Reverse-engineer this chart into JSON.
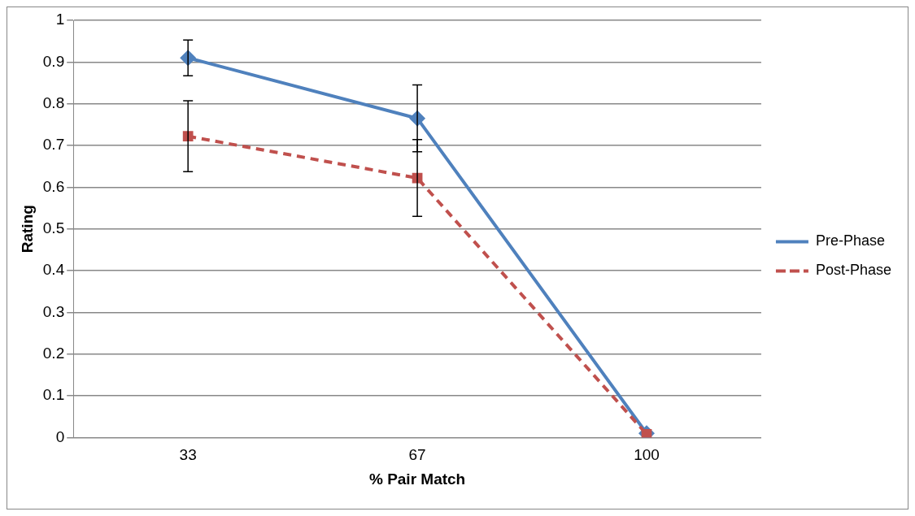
{
  "chart_data": {
    "type": "line",
    "xlabel": "% Pair Match",
    "ylabel": "Rating",
    "categories": [
      "33",
      "67",
      "100"
    ],
    "series": [
      {
        "name": "Pre-Phase",
        "color": "#4f81bd",
        "values": [
          0.91,
          0.765,
          0.01
        ],
        "errors": [
          0.043,
          0.08,
          null
        ],
        "marker": "diamond",
        "line_style": "solid"
      },
      {
        "name": "Post-Phase",
        "color": "#c0504d",
        "values": [
          0.722,
          0.622,
          0.008
        ],
        "errors": [
          0.085,
          0.092,
          null
        ],
        "marker": "square",
        "line_style": "dashed"
      }
    ],
    "ylim": [
      0,
      1
    ],
    "yticks": [
      0,
      0.1,
      0.2,
      0.3,
      0.4,
      0.5,
      0.6,
      0.7,
      0.8,
      0.9,
      1
    ],
    "grid": "y",
    "legend": "right"
  }
}
